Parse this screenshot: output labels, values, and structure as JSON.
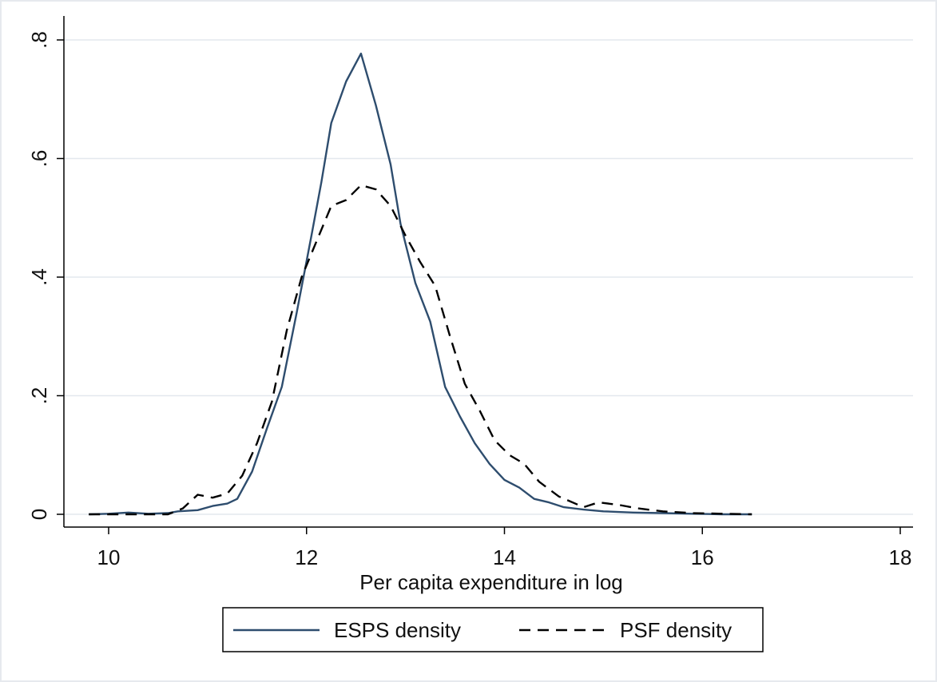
{
  "chart_data": {
    "type": "line",
    "title": "",
    "xlabel": "Per capita expenditure in log",
    "ylabel": "",
    "xlim": [
      9.8,
      18.0
    ],
    "ylim": [
      0,
      0.8
    ],
    "x_ticks": [
      10,
      12,
      14,
      16,
      18
    ],
    "x_tick_labels": [
      "10",
      "12",
      "14",
      "16",
      "18"
    ],
    "y_ticks": [
      0,
      0.2,
      0.4,
      0.6,
      0.8
    ],
    "y_tick_labels": [
      "0",
      ".2",
      ".4",
      ".6",
      ".8"
    ],
    "grid": true,
    "legend_position": "bottom",
    "series": [
      {
        "name": "ESPS density",
        "color": "#2e4d6e",
        "dash": "solid",
        "points": [
          [
            9.8,
            0.0
          ],
          [
            10.0,
            0.001
          ],
          [
            10.2,
            0.003
          ],
          [
            10.4,
            0.001
          ],
          [
            10.6,
            0.002
          ],
          [
            10.7,
            0.005
          ],
          [
            10.9,
            0.007
          ],
          [
            11.05,
            0.014
          ],
          [
            11.2,
            0.018
          ],
          [
            11.3,
            0.026
          ],
          [
            11.45,
            0.072
          ],
          [
            11.6,
            0.145
          ],
          [
            11.75,
            0.215
          ],
          [
            11.9,
            0.34
          ],
          [
            12.05,
            0.47
          ],
          [
            12.15,
            0.56
          ],
          [
            12.25,
            0.66
          ],
          [
            12.4,
            0.73
          ],
          [
            12.55,
            0.777
          ],
          [
            12.7,
            0.69
          ],
          [
            12.85,
            0.59
          ],
          [
            12.95,
            0.49
          ],
          [
            13.1,
            0.39
          ],
          [
            13.25,
            0.325
          ],
          [
            13.4,
            0.215
          ],
          [
            13.55,
            0.165
          ],
          [
            13.7,
            0.12
          ],
          [
            13.85,
            0.085
          ],
          [
            14.0,
            0.058
          ],
          [
            14.15,
            0.045
          ],
          [
            14.3,
            0.026
          ],
          [
            14.45,
            0.02
          ],
          [
            14.6,
            0.012
          ],
          [
            14.8,
            0.008
          ],
          [
            15.0,
            0.005
          ],
          [
            15.3,
            0.003
          ],
          [
            15.6,
            0.002
          ],
          [
            15.9,
            0.001
          ],
          [
            16.2,
            0.0
          ],
          [
            16.5,
            0.0
          ]
        ]
      },
      {
        "name": "PSF density",
        "color": "#000000",
        "dash": "dashed",
        "points": [
          [
            9.8,
            0.0
          ],
          [
            10.0,
            0.0
          ],
          [
            10.2,
            0.0
          ],
          [
            10.4,
            0.0
          ],
          [
            10.6,
            0.0
          ],
          [
            10.75,
            0.01
          ],
          [
            10.9,
            0.033
          ],
          [
            11.05,
            0.028
          ],
          [
            11.2,
            0.035
          ],
          [
            11.35,
            0.065
          ],
          [
            11.5,
            0.12
          ],
          [
            11.65,
            0.19
          ],
          [
            11.8,
            0.31
          ],
          [
            11.95,
            0.4
          ],
          [
            12.1,
            0.46
          ],
          [
            12.25,
            0.52
          ],
          [
            12.4,
            0.53
          ],
          [
            12.55,
            0.555
          ],
          [
            12.7,
            0.548
          ],
          [
            12.85,
            0.52
          ],
          [
            13.0,
            0.47
          ],
          [
            13.15,
            0.425
          ],
          [
            13.3,
            0.385
          ],
          [
            13.45,
            0.3
          ],
          [
            13.6,
            0.22
          ],
          [
            13.75,
            0.175
          ],
          [
            13.9,
            0.125
          ],
          [
            14.05,
            0.1
          ],
          [
            14.2,
            0.085
          ],
          [
            14.35,
            0.055
          ],
          [
            14.55,
            0.03
          ],
          [
            14.8,
            0.012
          ],
          [
            14.95,
            0.02
          ],
          [
            15.15,
            0.016
          ],
          [
            15.35,
            0.01
          ],
          [
            15.6,
            0.005
          ],
          [
            15.9,
            0.002
          ],
          [
            16.2,
            0.001
          ],
          [
            16.5,
            0.0
          ]
        ]
      }
    ]
  }
}
